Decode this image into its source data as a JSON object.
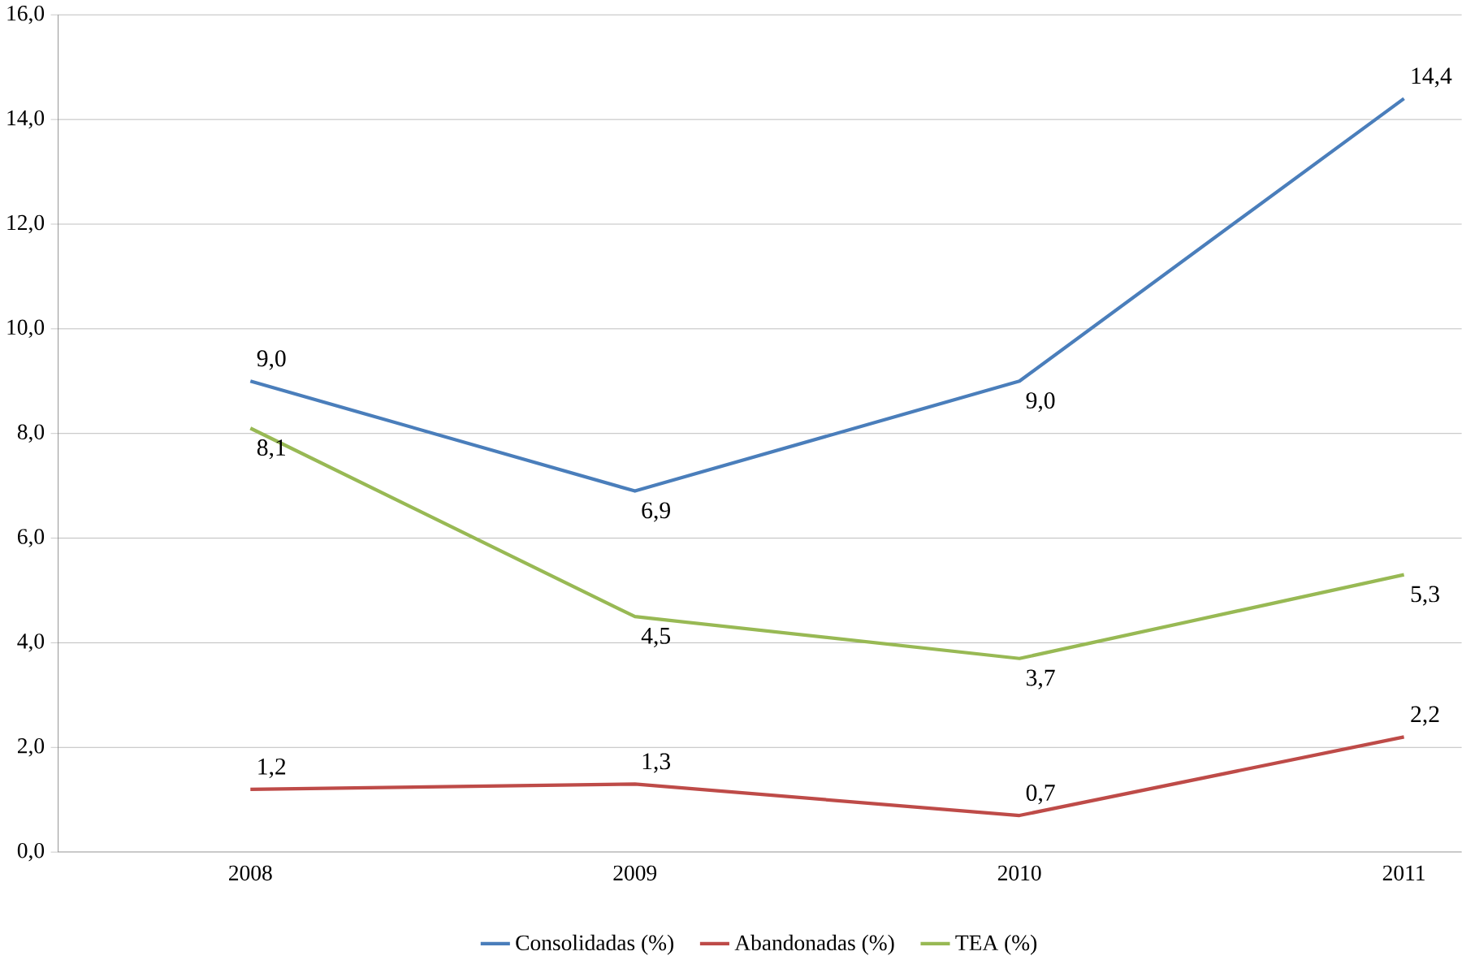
{
  "chart_data": {
    "type": "line",
    "categories": [
      "2008",
      "2009",
      "2010",
      "2011"
    ],
    "series": [
      {
        "name": "Consolidadas (%)",
        "color": "#4a7ebb",
        "values": [
          9.0,
          6.9,
          9.0,
          14.4
        ]
      },
      {
        "name": "Abandonadas (%)",
        "color": "#be4b48",
        "values": [
          1.2,
          1.3,
          0.7,
          2.2
        ]
      },
      {
        "name": "TEA (%)",
        "color": "#98b954",
        "values": [
          8.1,
          4.5,
          3.7,
          5.3
        ]
      }
    ],
    "ylim": [
      0,
      16
    ],
    "yticks": [
      {
        "value": 0,
        "label": "0,0"
      },
      {
        "value": 2,
        "label": "2,0"
      },
      {
        "value": 4,
        "label": "4,0"
      },
      {
        "value": 6,
        "label": "6,0"
      },
      {
        "value": 8,
        "label": "8,0"
      },
      {
        "value": 10,
        "label": "10,0"
      },
      {
        "value": 12,
        "label": "12,0"
      },
      {
        "value": 14,
        "label": "14,0"
      },
      {
        "value": 16,
        "label": "16,0"
      }
    ],
    "value_labels": [
      [
        "9,0",
        "6,9",
        "9,0",
        "14,4"
      ],
      [
        "1,2",
        "1,3",
        "0,7",
        "2,2"
      ],
      [
        "8,1",
        "4,5",
        "3,7",
        "5,3"
      ]
    ],
    "grid": "y",
    "legend": "bottom",
    "marker": "none",
    "line_style": "solid"
  }
}
